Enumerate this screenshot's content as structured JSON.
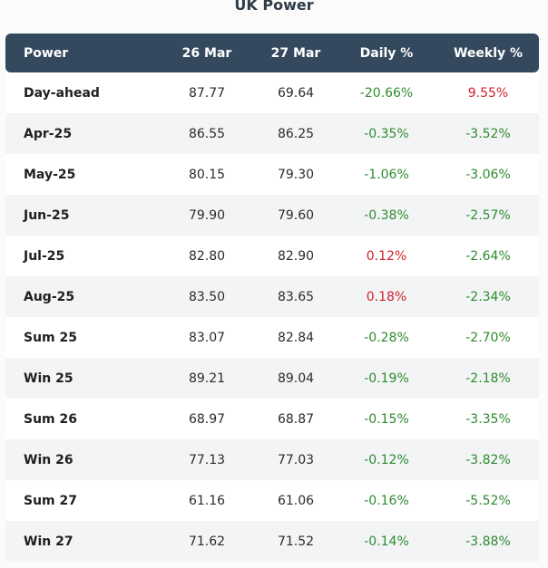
{
  "title": "UK Power",
  "columns": [
    "Power",
    "26 Mar",
    "27 Mar",
    "Daily %",
    "Weekly %"
  ],
  "colors": {
    "header_bg": "#34495e",
    "negative": "#2e8b2e",
    "positive": "#d0202a"
  },
  "rows": [
    {
      "name": "Day-ahead",
      "d1": "87.77",
      "d2": "69.64",
      "daily": "-20.66%",
      "weekly": "9.55%"
    },
    {
      "name": "Apr-25",
      "d1": "86.55",
      "d2": "86.25",
      "daily": "-0.35%",
      "weekly": "-3.52%"
    },
    {
      "name": "May-25",
      "d1": "80.15",
      "d2": "79.30",
      "daily": "-1.06%",
      "weekly": "-3.06%"
    },
    {
      "name": "Jun-25",
      "d1": "79.90",
      "d2": "79.60",
      "daily": "-0.38%",
      "weekly": "-2.57%"
    },
    {
      "name": "Jul-25",
      "d1": "82.80",
      "d2": "82.90",
      "daily": "0.12%",
      "weekly": "-2.64%"
    },
    {
      "name": "Aug-25",
      "d1": "83.50",
      "d2": "83.65",
      "daily": "0.18%",
      "weekly": "-2.34%"
    },
    {
      "name": "Sum 25",
      "d1": "83.07",
      "d2": "82.84",
      "daily": "-0.28%",
      "weekly": "-2.70%"
    },
    {
      "name": "Win 25",
      "d1": "89.21",
      "d2": "89.04",
      "daily": "-0.19%",
      "weekly": "-2.18%"
    },
    {
      "name": "Sum 26",
      "d1": "68.97",
      "d2": "68.87",
      "daily": "-0.15%",
      "weekly": "-3.35%"
    },
    {
      "name": "Win 26",
      "d1": "77.13",
      "d2": "77.03",
      "daily": "-0.12%",
      "weekly": "-3.82%"
    },
    {
      "name": "Sum 27",
      "d1": "61.16",
      "d2": "61.06",
      "daily": "-0.16%",
      "weekly": "-5.52%"
    },
    {
      "name": "Win 27",
      "d1": "71.62",
      "d2": "71.52",
      "daily": "-0.14%",
      "weekly": "-3.88%"
    }
  ]
}
